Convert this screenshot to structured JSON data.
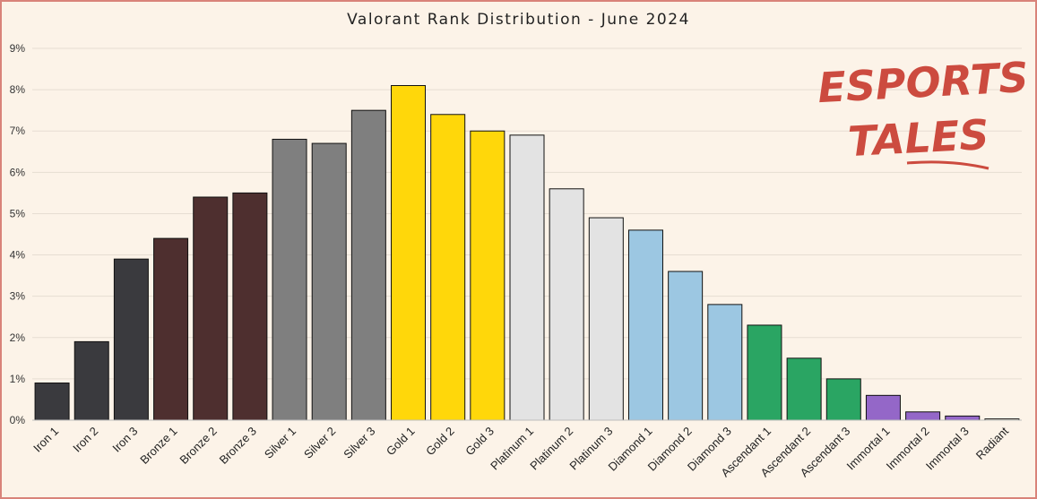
{
  "chart_data": {
    "type": "bar",
    "title": "Valorant Rank Distribution  - June 2024",
    "categories": [
      "Iron 1",
      "Iron 2",
      "Iron 3",
      "Bronze 1",
      "Bronze 2",
      "Bronze 3",
      "Silver 1",
      "Silver 2",
      "Silver 3",
      "Gold 1",
      "Gold 2",
      "Gold 3",
      "Platinum 1",
      "Platinum 2",
      "Platinum 3",
      "Diamond 1",
      "Diamond 2",
      "Diamond 3",
      "Ascendant 1",
      "Ascendant 2",
      "Ascendant 3",
      "Immortal 1",
      "Immortal 2",
      "Immortal 3",
      "Radiant"
    ],
    "values": [
      0.9,
      1.9,
      3.9,
      4.4,
      5.4,
      5.5,
      6.8,
      6.7,
      7.5,
      8.1,
      7.4,
      7.0,
      6.9,
      5.6,
      4.9,
      4.6,
      3.6,
      2.8,
      2.3,
      1.5,
      1.0,
      0.6,
      0.2,
      0.1,
      0.03
    ],
    "colors": [
      "#3a3a3e",
      "#3a3a3e",
      "#3a3a3e",
      "#4e2f2f",
      "#4e2f2f",
      "#4e2f2f",
      "#7f7f7f",
      "#7f7f7f",
      "#7f7f7f",
      "#ffd70a",
      "#ffd70a",
      "#ffd70a",
      "#e3e3e3",
      "#e3e3e3",
      "#e3e3e3",
      "#9cc7e2",
      "#9cc7e2",
      "#9cc7e2",
      "#2aa563",
      "#2aa563",
      "#2aa563",
      "#9467c8",
      "#9467c8",
      "#9467c8",
      "#f5eede"
    ],
    "yticks": [
      "0%",
      "1%",
      "2%",
      "3%",
      "4%",
      "5%",
      "6%",
      "7%",
      "8%",
      "9%"
    ],
    "ylim": [
      0,
      9
    ],
    "grid": true
  },
  "logo": {
    "line1": "ESPORTS",
    "line2": "TALES"
  }
}
